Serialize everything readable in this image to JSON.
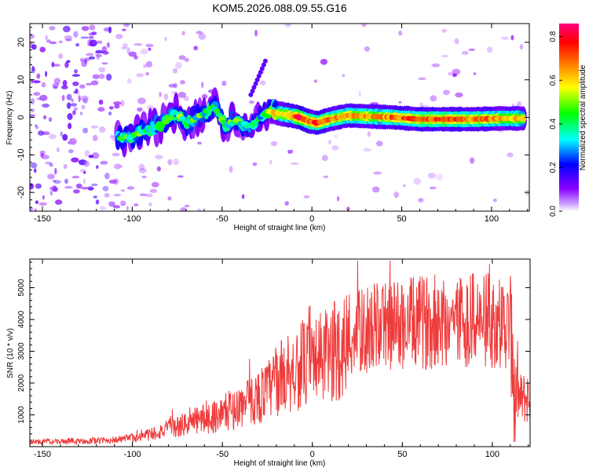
{
  "title": "KOM5.2026.088.09.55.G16",
  "colors": {
    "snr_line": "#ef3b3b",
    "axis": "#000000",
    "background": "#ffffff"
  },
  "chart_data": [
    {
      "type": "heatmap",
      "xlabel": "Height of straight line (km)",
      "ylabel": "Frequency (Hz)",
      "xlim": [
        -157,
        121
      ],
      "ylim": [
        -25,
        25
      ],
      "xticks": [
        -150,
        -100,
        -50,
        0,
        50,
        100
      ],
      "yticks": [
        -20,
        -10,
        0,
        10,
        20
      ],
      "colorbar": {
        "label": "Normalized spectral amplitude",
        "range": [
          0,
          0.86
        ],
        "ticks": [
          0.0,
          0.2,
          0.4,
          0.6,
          0.8
        ],
        "tick_labels": [
          "0.0",
          "0.2",
          "0.4",
          "0.6",
          "0.8"
        ],
        "colormap": [
          "#ffffff",
          "#8a00ff",
          "#0000ff",
          "#00ffff",
          "#00ff00",
          "#ffff00",
          "#ff8000",
          "#ff0000",
          "#ff0080"
        ]
      },
      "ridge": [
        {
          "x": -108,
          "y": -5.5,
          "a": 0.32
        },
        {
          "x": -100,
          "y": -5.0,
          "a": 0.38
        },
        {
          "x": -92,
          "y": -3.5,
          "a": 0.35
        },
        {
          "x": -84,
          "y": -2.0,
          "a": 0.4
        },
        {
          "x": -76,
          "y": 1.5,
          "a": 0.38
        },
        {
          "x": -70,
          "y": -1.5,
          "a": 0.35
        },
        {
          "x": -62,
          "y": 0.5,
          "a": 0.36
        },
        {
          "x": -55,
          "y": 3.0,
          "a": 0.32
        },
        {
          "x": -48,
          "y": -2.0,
          "a": 0.36
        },
        {
          "x": -42,
          "y": -1.0,
          "a": 0.38
        },
        {
          "x": -34,
          "y": -2.5,
          "a": 0.3
        },
        {
          "x": -28,
          "y": 0.5,
          "a": 0.32
        },
        {
          "x": -24,
          "y": 1.5,
          "a": 0.4
        },
        {
          "x": -18,
          "y": 1.0,
          "a": 0.5
        },
        {
          "x": -12,
          "y": 0.5,
          "a": 0.55
        },
        {
          "x": -7,
          "y": 0.0,
          "a": 0.7
        },
        {
          "x": -2,
          "y": -1.0,
          "a": 0.6
        },
        {
          "x": 3,
          "y": -1.5,
          "a": 0.65
        },
        {
          "x": 10,
          "y": -0.5,
          "a": 0.55
        },
        {
          "x": 20,
          "y": 0.5,
          "a": 0.58
        },
        {
          "x": 30,
          "y": 0.3,
          "a": 0.55
        },
        {
          "x": 45,
          "y": 0.0,
          "a": 0.58
        },
        {
          "x": 60,
          "y": -0.5,
          "a": 0.6
        },
        {
          "x": 75,
          "y": -0.5,
          "a": 0.6
        },
        {
          "x": 90,
          "y": -0.5,
          "a": 0.58
        },
        {
          "x": 105,
          "y": -0.3,
          "a": 0.55
        },
        {
          "x": 118,
          "y": -0.3,
          "a": 0.5
        }
      ]
    },
    {
      "type": "line",
      "xlabel": "Height of straight line (km)",
      "ylabel": "SNR (10 * v/v)",
      "xlim": [
        -157,
        121
      ],
      "ylim": [
        0,
        5900
      ],
      "xticks": [
        -150,
        -100,
        -50,
        0,
        50,
        100
      ],
      "yticks": [
        1000,
        2000,
        3000,
        4000,
        5000
      ],
      "series": [
        {
          "name": "SNR",
          "x": [
            -157,
            -140,
            -120,
            -105,
            -95,
            -85,
            -75,
            -65,
            -55,
            -45,
            -35,
            -25,
            -20,
            -15,
            -10,
            -5,
            0,
            5,
            10,
            15,
            20,
            25,
            30,
            40,
            50,
            60,
            70,
            80,
            90,
            100,
            105,
            110,
            112,
            115,
            121
          ],
          "values": [
            150,
            160,
            180,
            230,
            320,
            480,
            620,
            820,
            950,
            1150,
            1400,
            1750,
            2050,
            2300,
            2450,
            2550,
            2600,
            2750,
            2900,
            3100,
            3300,
            3550,
            3700,
            3800,
            3850,
            3900,
            3950,
            4000,
            4000,
            3950,
            3900,
            3800,
            1900,
            1500,
            1550
          ]
        }
      ]
    }
  ]
}
